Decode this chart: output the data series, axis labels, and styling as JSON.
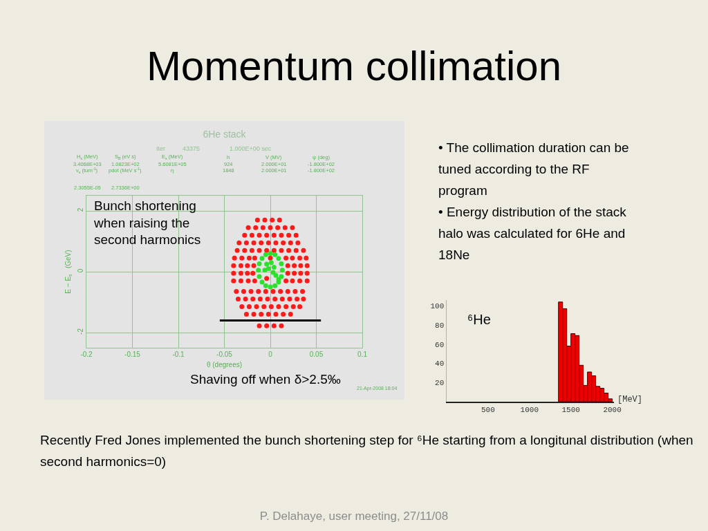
{
  "chart_data": [
    {
      "type": "other",
      "title": "Momentum collimation",
      "annotations": [
        "• The collimation duration can be tuned according to the RF program",
        "• Energy distribution of the stack halo was calculated for 6He and 18Ne",
        "Recently Fred Jones implemented the bunch shortening step for ⁶He starting from a longitunal distribution (when second harmonics=0)",
        "P. Delahaye, user meeting, 27/11/08"
      ]
    },
    {
      "type": "scatter",
      "title": "6He stack",
      "xlabel": "θ (degrees)",
      "ylabel": "E − E$_{s}$   (GeV)",
      "annotations": [
        "Iter",
        "43375",
        "1.000E+00 sec",
        "H$_{s}$ (MeV)",
        "S$_{B}$ (eV s)",
        "E$_{s}$ (MeV)",
        "h",
        "V (MV)",
        "ψ (deg)",
        "3.4068E+03",
        "1.0823E+02",
        "5.6081E+05",
        "924",
        "2.000E+01",
        "-1.800E+02",
        "ν$_{s}$ (turn$^{-1}$)",
        "pdot (MeV s$^{-1}$)",
        "η",
        "1848",
        "2.000E+01",
        "-1.800E+02",
        "2.3055E-05",
        "2.7336E+00",
        "Bunch shortening when raising the second harmonics",
        "Shaving off when δ>2.5‰",
        "21-Apr-2008 18:04"
      ],
      "xlim": [
        -0.2,
        0.1
      ],
      "ylim": [
        -2.5,
        2.5
      ],
      "xticks": [
        -0.2,
        -0.15,
        -0.1,
        -0.05,
        0,
        0.05,
        0.1
      ],
      "yticks": [
        -2,
        0,
        2
      ],
      "grid": true,
      "marker": "circle",
      "series": [
        {
          "color": "#ff1a1a",
          "x": [
            -0.014,
            -0.006,
            0.002,
            0.01,
            -0.024,
            -0.016,
            -0.008,
            0,
            0.008,
            0.016,
            0.024,
            -0.028,
            -0.02,
            -0.012,
            -0.004,
            0.004,
            0.012,
            0.02,
            0.028,
            -0.034,
            -0.026,
            -0.018,
            -0.01,
            -0.002,
            0.006,
            0.014,
            0.022,
            0.03,
            -0.036,
            -0.028,
            -0.02,
            -0.012,
            -0.004,
            0.004,
            0.012,
            0.02,
            0.028,
            0.036,
            -0.039,
            -0.031,
            -0.023,
            -0.017,
            0,
            0.017,
            0.024,
            0.032,
            0.039,
            -0.04,
            -0.032,
            -0.025,
            -0.018,
            0.019,
            0.026,
            0.033,
            0.04,
            -0.04,
            -0.032,
            -0.025,
            -0.019,
            0.019,
            0.026,
            0.033,
            0.04,
            -0.004,
            -0.04,
            -0.032,
            -0.024,
            -0.017,
            0.017,
            0.024,
            0.032,
            0.04,
            -0.037,
            -0.029,
            -0.021,
            -0.013,
            -0.005,
            0.003,
            0.011,
            0.019,
            0.027,
            0.035,
            -0.035,
            -0.027,
            -0.019,
            -0.011,
            -0.003,
            0.005,
            0.013,
            0.021,
            0.029,
            0.036,
            -0.031,
            -0.023,
            -0.015,
            -0.007,
            0.001,
            0.009,
            0.017,
            0.025,
            0.032,
            -0.026,
            -0.018,
            -0.01,
            -0.002,
            0.006,
            0.014,
            0.022,
            -0.012,
            -0.004,
            0.004,
            0.012
          ],
          "values": [
            1.7,
            1.7,
            1.7,
            1.7,
            1.45,
            1.45,
            1.45,
            1.45,
            1.45,
            1.45,
            1.45,
            1.2,
            1.2,
            1.2,
            1.2,
            1.2,
            1.2,
            1.2,
            1.2,
            0.95,
            0.95,
            0.95,
            0.95,
            0.95,
            0.95,
            0.95,
            0.95,
            0.95,
            0.7,
            0.7,
            0.7,
            0.7,
            0.7,
            0.7,
            0.7,
            0.7,
            0.7,
            0.7,
            0.45,
            0.45,
            0.45,
            0.45,
            0.45,
            0.45,
            0.45,
            0.45,
            0.45,
            0.2,
            0.2,
            0.2,
            0.2,
            0.2,
            0.2,
            0.2,
            0.2,
            -0.05,
            -0.05,
            -0.05,
            -0.05,
            -0.05,
            -0.05,
            -0.05,
            -0.05,
            -0.22,
            -0.3,
            -0.3,
            -0.3,
            -0.3,
            -0.3,
            -0.3,
            -0.3,
            -0.3,
            -0.65,
            -0.65,
            -0.65,
            -0.65,
            -0.65,
            -0.65,
            -0.65,
            -0.65,
            -0.65,
            -0.65,
            -0.9,
            -0.9,
            -0.9,
            -0.9,
            -0.9,
            -0.9,
            -0.9,
            -0.9,
            -0.9,
            -0.9,
            -1.15,
            -1.15,
            -1.15,
            -1.15,
            -1.15,
            -1.15,
            -1.15,
            -1.15,
            -1.15,
            -1.4,
            -1.4,
            -1.4,
            -1.4,
            -1.4,
            -1.4,
            -1.4,
            -1.78,
            -1.78,
            -1.78,
            -1.78
          ]
        },
        {
          "color": "#2ee02e",
          "x": [
            0,
            0.005,
            0.009,
            0.012,
            0.013,
            0.012,
            0.009,
            0.005,
            0,
            -0.005,
            -0.009,
            -0.012,
            -0.013,
            -0.012,
            -0.009,
            -0.005,
            -0.004,
            0.001,
            0.004,
            -0.002,
            -0.006,
            0.003,
            0.006,
            0.009
          ],
          "values": [
            0.6,
            0.56,
            0.44,
            0.26,
            0.05,
            -0.16,
            -0.34,
            -0.46,
            -0.5,
            -0.46,
            -0.34,
            -0.16,
            0.05,
            0.26,
            0.44,
            0.56,
            0.25,
            0.3,
            0.15,
            0.1,
            0.05,
            -0.02,
            -0.12,
            -0.25
          ]
        },
        {
          "type": "line",
          "marker": "none",
          "color": "#000000",
          "x": [
            -0.055,
            0.055
          ],
          "values": [
            -1.6,
            -1.6
          ]
        }
      ]
    },
    {
      "type": "histogram",
      "annotations": [
        "⁶He"
      ],
      "xlabel": "[MeV]",
      "bins": [
        1350,
        1400,
        1450,
        1500,
        1550,
        1600,
        1650,
        1700,
        1750,
        1800,
        1850,
        1900,
        1950,
        2000
      ],
      "values": [
        104,
        97,
        58,
        71,
        69,
        38,
        17,
        31,
        27,
        16,
        14,
        9,
        3
      ],
      "color": "#ee0000",
      "xlim": [
        0,
        2020
      ],
      "ylim": [
        0,
        106
      ],
      "xticks": [
        500,
        1000,
        1500,
        2000
      ],
      "yticks": [
        20,
        40,
        60,
        80,
        100
      ]
    }
  ]
}
